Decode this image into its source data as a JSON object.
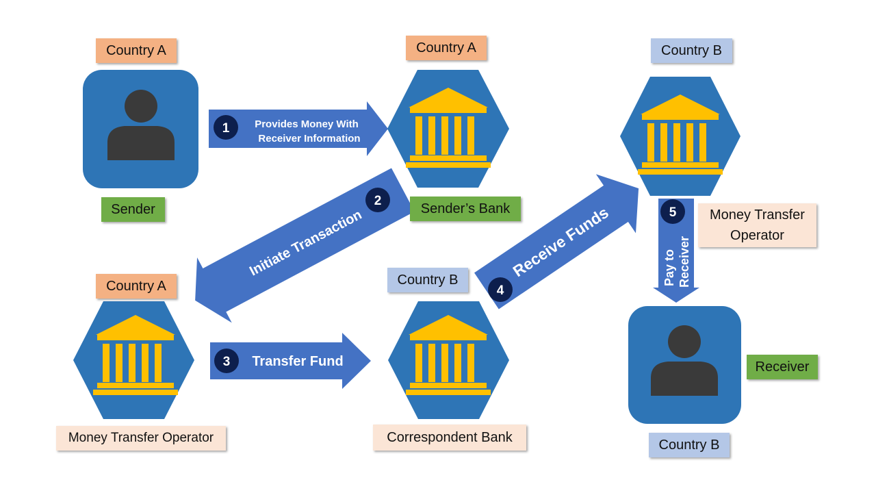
{
  "colors": {
    "node_fill": "#2E75B6",
    "icon_person": "#3A3A3A",
    "icon_bank": "#FFC000",
    "arrow": "#4472C4",
    "badge": "#0D1F4D"
  },
  "nodes": {
    "sender": {
      "country": "Country A",
      "role": "Sender",
      "icon": "person-icon"
    },
    "senders_bank": {
      "country": "Country A",
      "role": "Sender’s Bank",
      "icon": "bank-icon"
    },
    "mto_a": {
      "country": "Country A",
      "role": "Money Transfer Operator",
      "icon": "bank-icon"
    },
    "correspondent_bank": {
      "country": "Country B",
      "role": "Correspondent Bank",
      "icon": "bank-icon"
    },
    "receivers_bank": {
      "country": "Country B",
      "role_line1": "Money Transfer",
      "role_line2": "Operator",
      "icon": "bank-icon"
    },
    "receiver": {
      "country": "Country B",
      "role": "Receiver",
      "icon": "person-icon"
    }
  },
  "steps": [
    {
      "num": "1",
      "line1": "Provides Money With",
      "line2": "Receiver Information"
    },
    {
      "num": "2",
      "label": "Initiate Transaction"
    },
    {
      "num": "3",
      "label": "Transfer Fund"
    },
    {
      "num": "4",
      "label": "Receive Funds"
    },
    {
      "num": "5",
      "line1": "Pay to",
      "line2": "Receiver"
    }
  ]
}
